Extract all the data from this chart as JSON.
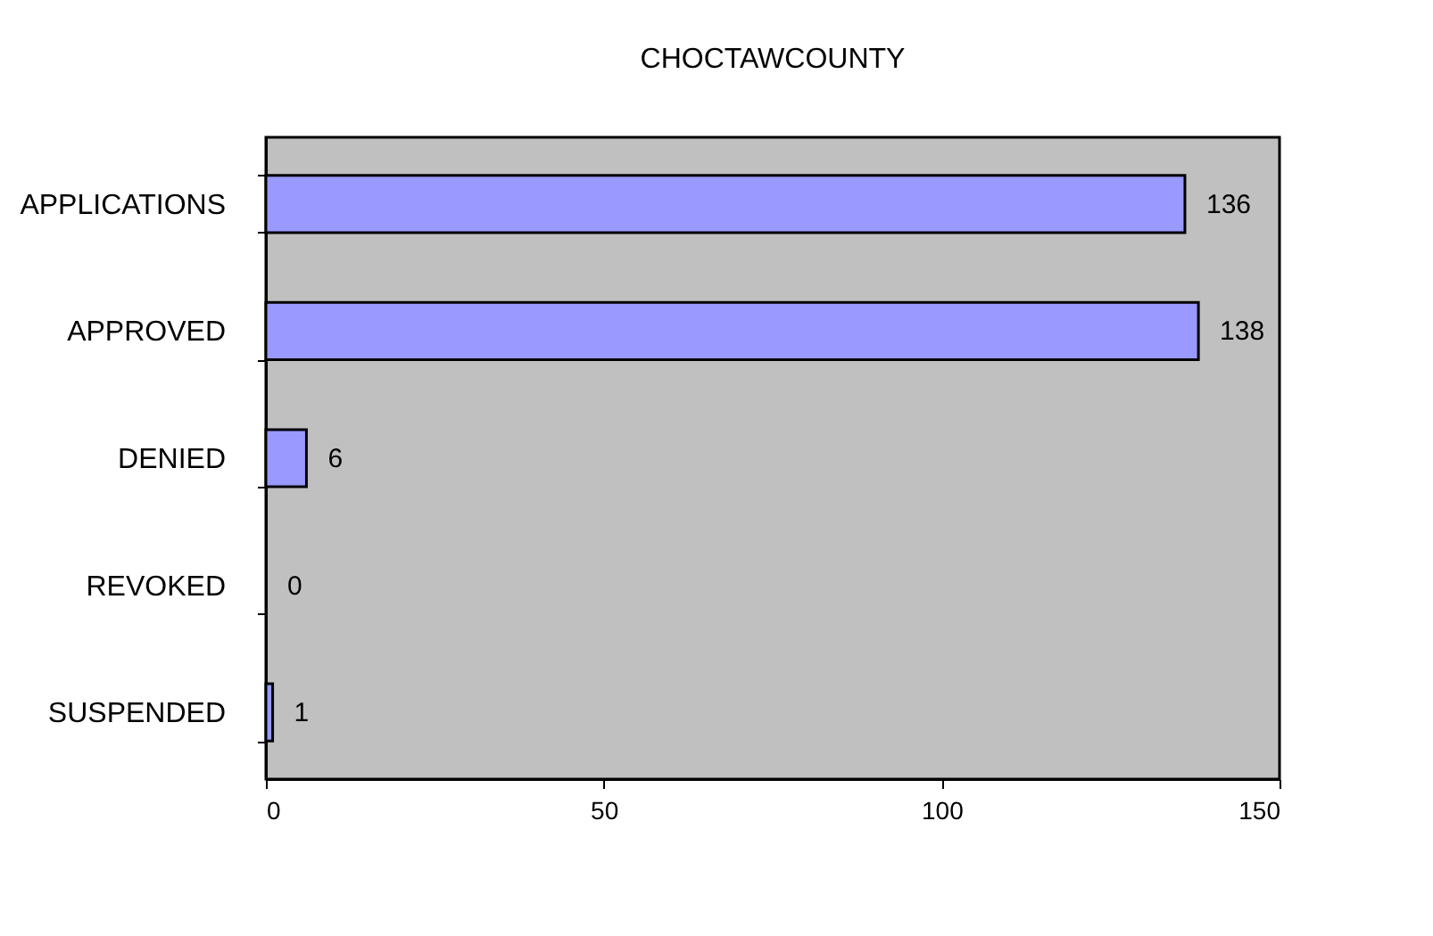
{
  "chart_data": {
    "type": "bar",
    "orientation": "horizontal",
    "title": "CHOCTAWCOUNTY",
    "categories": [
      "APPLICATIONS",
      "APPROVED",
      "DENIED",
      "REVOKED",
      "SUSPENDED"
    ],
    "values": [
      136,
      138,
      6,
      0,
      1
    ],
    "color": "#9999ff",
    "xlim": [
      0,
      150
    ],
    "xticks": [
      0,
      50,
      100,
      150
    ],
    "grid": false,
    "data_labels": true
  }
}
